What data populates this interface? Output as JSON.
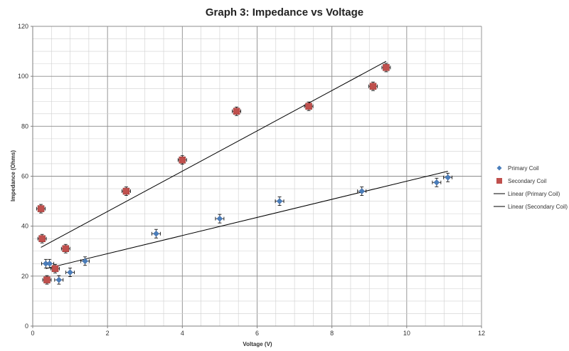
{
  "chart_data": {
    "type": "scatter",
    "title": "Graph 3: Impedance vs Voltage",
    "xlabel": "Voltage (V)",
    "ylabel": "Impedance (Ohms)",
    "xlim": [
      0,
      12
    ],
    "ylim": [
      0,
      120
    ],
    "x_ticks": [
      "0",
      "2",
      "4",
      "6",
      "8",
      "10",
      "12"
    ],
    "y_ticks": [
      "0",
      "20",
      "40",
      "60",
      "80",
      "100",
      "120"
    ],
    "grid": true,
    "legend_position": "right",
    "series": [
      {
        "name": "Primary Coil",
        "marker": "diamond",
        "color": "#4a7ebb",
        "points": [
          {
            "x": 0.35,
            "y": 25
          },
          {
            "x": 0.45,
            "y": 25
          },
          {
            "x": 0.7,
            "y": 18.5
          },
          {
            "x": 1.0,
            "y": 21.5
          },
          {
            "x": 1.4,
            "y": 26
          },
          {
            "x": 3.3,
            "y": 37
          },
          {
            "x": 5.0,
            "y": 43
          },
          {
            "x": 6.6,
            "y": 50
          },
          {
            "x": 8.8,
            "y": 54
          },
          {
            "x": 10.8,
            "y": 57.5
          },
          {
            "x": 11.1,
            "y": 59.5
          }
        ]
      },
      {
        "name": "Secondary Coil",
        "marker": "square",
        "color": "#c0504d",
        "points": [
          {
            "x": 0.22,
            "y": 47
          },
          {
            "x": 0.25,
            "y": 35
          },
          {
            "x": 0.38,
            "y": 18.5
          },
          {
            "x": 0.6,
            "y": 23
          },
          {
            "x": 0.88,
            "y": 31
          },
          {
            "x": 2.5,
            "y": 54
          },
          {
            "x": 4.0,
            "y": 66.5
          },
          {
            "x": 5.45,
            "y": 86
          },
          {
            "x": 7.38,
            "y": 88
          },
          {
            "x": 9.1,
            "y": 96
          },
          {
            "x": 9.45,
            "y": 103.5
          }
        ]
      }
    ],
    "trendlines": [
      {
        "name": "Linear (Primary Coil)",
        "x": [
          0.35,
          11.1
        ],
        "y": [
          23,
          62
        ],
        "color": "#000000"
      },
      {
        "name": "Linear (Secondary Coil)",
        "x": [
          0.22,
          9.45
        ],
        "y": [
          31.5,
          106
        ],
        "color": "#000000"
      }
    ]
  }
}
